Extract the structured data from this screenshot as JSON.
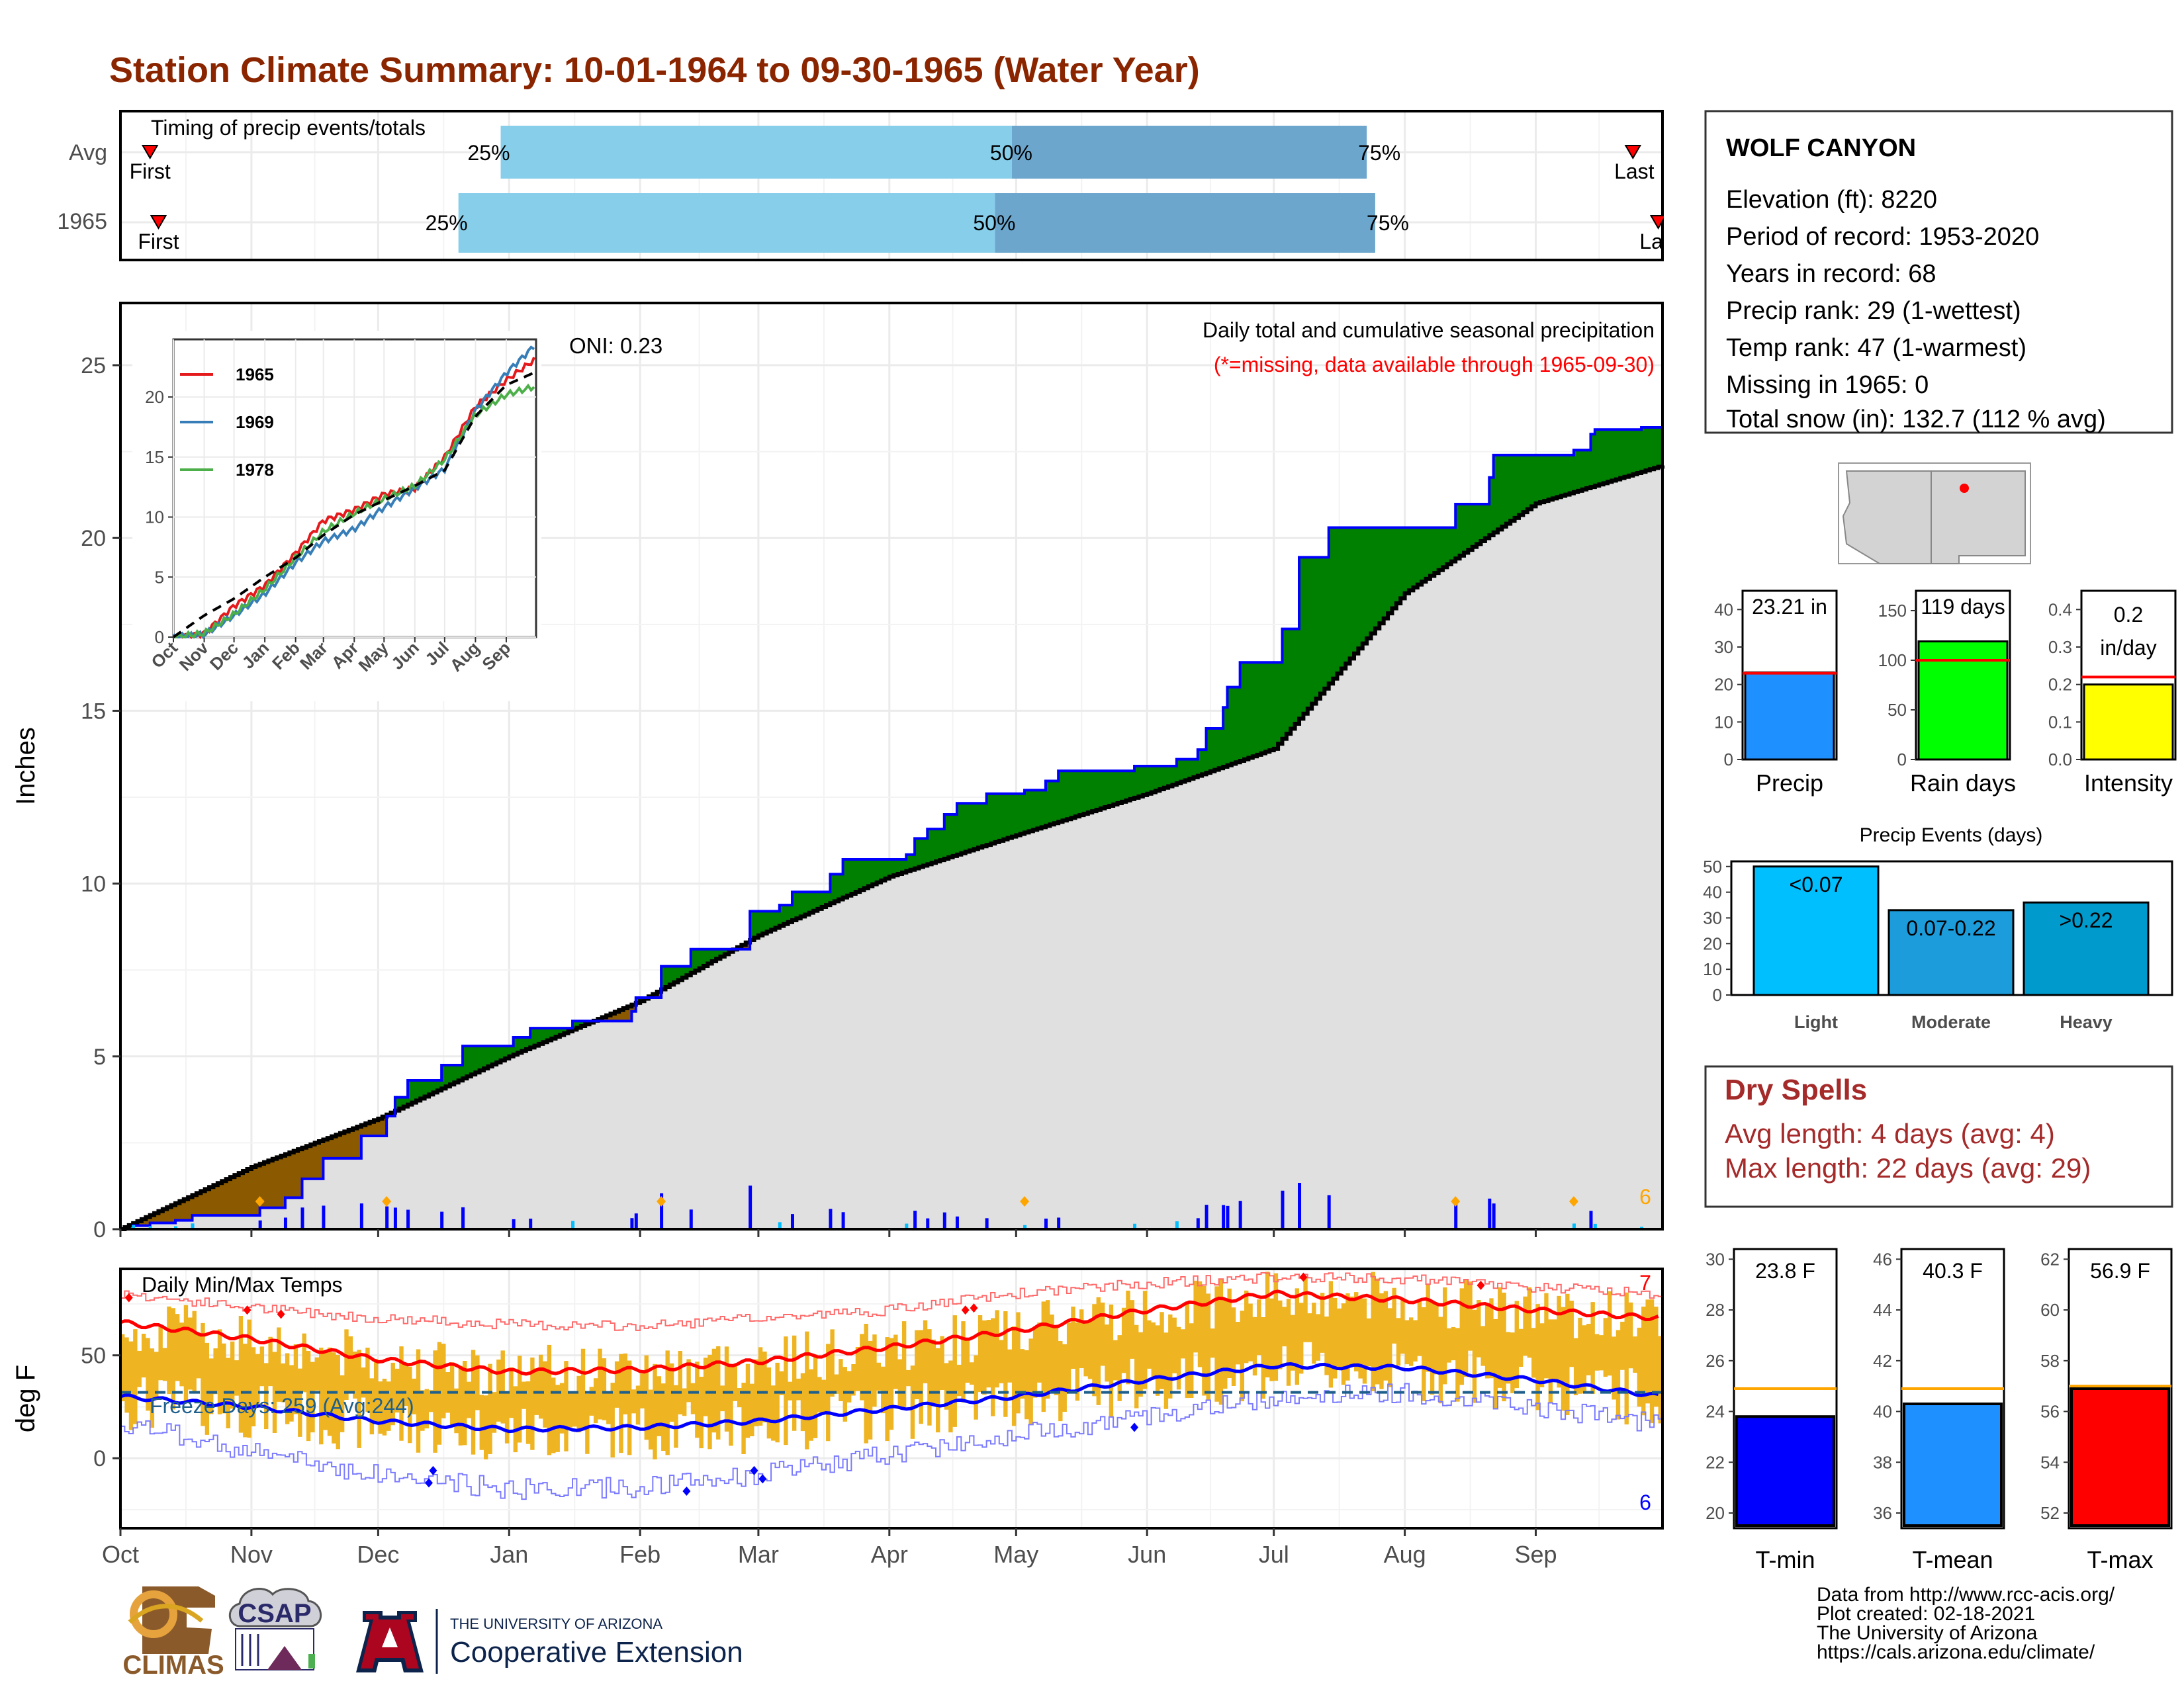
{
  "title": "Station Climate Summary: 10-01-1964 to 09-30-1965 (Water Year)",
  "colors": {
    "title": "#8B2500",
    "q_light": "#87CEEB",
    "q_dark": "#6CA6CD",
    "above_avg": "#008000",
    "below_avg": "#8B5A00",
    "cum_fill": "#E0E0E0",
    "obs_line": "#0000FF",
    "temp_bar": "#EEB422",
    "tmax_line": "#FF0000",
    "tmin_line": "#0000FF"
  },
  "timing": {
    "label": "Timing of precip events/totals",
    "rows": [
      {
        "name": "Avg",
        "first_label": "First",
        "last_label": "Last",
        "p25": "25%",
        "p50": "50%",
        "p75": "75%"
      },
      {
        "name": "1965",
        "first_label": "First",
        "last_label": "Last",
        "p25": "25%",
        "p50": "50%",
        "p75": "75%"
      }
    ]
  },
  "precip_panel": {
    "y_axis_title": "Inches",
    "title": "Daily total and cumulative seasonal precipitation",
    "missing_note": "(*=missing, data available through 1965-09-30)",
    "oni": "ONI: 0.23",
    "corner_count": "6",
    "y_ticks": [
      "0",
      "5",
      "10",
      "15",
      "20",
      "25"
    ]
  },
  "inset": {
    "y_ticks": [
      "0",
      "5",
      "10",
      "15",
      "20"
    ],
    "x_ticks": [
      "Oct",
      "Nov",
      "Dec",
      "Jan",
      "Feb",
      "Mar",
      "Apr",
      "May",
      "Jun",
      "Jul",
      "Aug",
      "Sep"
    ],
    "legend": [
      {
        "year": "1965",
        "color": "#E41A1C"
      },
      {
        "year": "1969",
        "color": "#377EB8"
      },
      {
        "year": "1978",
        "color": "#4DAF4A"
      }
    ]
  },
  "temp_panel": {
    "y_axis_title": "deg F",
    "title": "Daily Min/Max Temps",
    "freeze": "Freeze Days: 259 (Avg:244)",
    "max_count": "7",
    "min_count": "6",
    "y_ticks": [
      "0",
      "50"
    ]
  },
  "months": [
    "Oct",
    "Nov",
    "Dec",
    "Jan",
    "Feb",
    "Mar",
    "Apr",
    "May",
    "Jun",
    "Jul",
    "Aug",
    "Sep"
  ],
  "station": {
    "name": "WOLF CANYON",
    "lines": [
      "Elevation (ft): 8220",
      "Period of record: 1953-2020",
      "Years in record: 68",
      "Precip rank: 29 (1-wettest)",
      "Temp rank: 47 (1-warmest)",
      "Missing in 1965: 0",
      "Total snow (in): 132.7 (112 % avg)"
    ]
  },
  "summary_bars": [
    {
      "label": "Precip",
      "value_text": "23.21 in",
      "ticks": [
        "0",
        "10",
        "20",
        "30",
        "40"
      ],
      "color": "#1E90FF"
    },
    {
      "label": "Rain days",
      "value_text": "119 days",
      "ticks": [
        "0",
        "50",
        "100",
        "150"
      ],
      "color": "#00FF00"
    },
    {
      "label": "Intensity",
      "value_text": "0.2",
      "value_text2": "in/day",
      "ticks": [
        "0.0",
        "0.1",
        "0.2",
        "0.3",
        "0.4"
      ],
      "color": "#FFFF00"
    }
  ],
  "events": {
    "title": "Precip Events (days)",
    "ticks": [
      "0",
      "10",
      "20",
      "30",
      "40",
      "50"
    ],
    "bars": [
      {
        "cat": "Light",
        "label": "<0.07",
        "color": "#00BFFF"
      },
      {
        "cat": "Moderate",
        "label": "0.07-0.22",
        "color": "#1C9CDB"
      },
      {
        "cat": "Heavy",
        "label": ">0.22",
        "color": "#009ACD"
      }
    ]
  },
  "dry_spells": {
    "title": "Dry Spells",
    "avg": "Avg length: 4 days (avg: 4)",
    "max": "Max length: 22 days (avg: 29)"
  },
  "temp_bars": [
    {
      "label": "T-min",
      "value_text": "23.8 F",
      "ticks": [
        "20",
        "22",
        "24",
        "26",
        "28",
        "30"
      ],
      "color": "#0000FF"
    },
    {
      "label": "T-mean",
      "value_text": "40.3 F",
      "ticks": [
        "36",
        "38",
        "40",
        "42",
        "44",
        "46"
      ],
      "color": "#1E90FF"
    },
    {
      "label": "T-max",
      "value_text": "56.9 F",
      "ticks": [
        "52",
        "54",
        "56",
        "58",
        "60",
        "62"
      ],
      "color": "#FF0000"
    }
  ],
  "footer": {
    "lines": [
      "Data from http://www.rcc-acis.org/",
      "Plot created: 02-18-2021",
      "The University of Arizona",
      "https://cals.arizona.edu/climate/"
    ],
    "logo_climas": "CLIMAS",
    "logo_csap": "CSAP",
    "ua_line1": "THE UNIVERSITY OF ARIZONA",
    "ua_line2": "Cooperative Extension"
  },
  "chart_data": [
    {
      "type": "bar",
      "title": "Timing of precip events/totals",
      "categories": [
        "Avg",
        "1965"
      ],
      "series": [
        {
          "name": "First",
          "values": [
            "Oct 08",
            "Oct 10"
          ]
        },
        {
          "name": "25%",
          "values": [
            "Dec 30",
            "Dec 20"
          ]
        },
        {
          "name": "50%",
          "values": [
            "Apr 30",
            "Apr 26"
          ]
        },
        {
          "name": "75%",
          "values": [
            "Jul 23",
            "Jul 25"
          ]
        },
        {
          "name": "Last",
          "values": [
            "Sep 24",
            "Sep 30"
          ]
        }
      ]
    },
    {
      "type": "area",
      "title": "Daily total and cumulative seasonal precipitation",
      "ylabel": "Inches",
      "ylim": [
        0,
        25
      ],
      "x": [
        "Oct",
        "Nov",
        "Dec",
        "Jan",
        "Feb",
        "Mar",
        "Apr",
        "May",
        "Jun",
        "Jul",
        "Aug",
        "Sep",
        "Oct"
      ],
      "series": [
        {
          "name": "1965",
          "values": [
            0.0,
            0.4,
            2.7,
            5.3,
            6.7,
            9.2,
            10.7,
            12.6,
            13.4,
            16.4,
            20.3,
            22.4,
            23.2
          ]
        },
        {
          "name": "Avg",
          "values": [
            0.0,
            1.8,
            3.2,
            5.0,
            6.6,
            8.5,
            10.2,
            11.4,
            12.6,
            13.9,
            18.4,
            21.0,
            22.1
          ]
        }
      ]
    },
    {
      "type": "line",
      "ylim": [
        0,
        25
      ],
      "x": [
        "Oct",
        "Nov",
        "Dec",
        "Jan",
        "Feb",
        "Mar",
        "Apr",
        "May",
        "Jun",
        "Jul",
        "Aug",
        "Sep",
        "Oct"
      ],
      "series": [
        {
          "name": "1965",
          "values": [
            0.0,
            0.3,
            2.6,
            4.3,
            7.0,
            9.7,
            10.6,
            11.9,
            12.4,
            15.0,
            19.2,
            21.4,
            23.2
          ]
        },
        {
          "name": "1969",
          "values": [
            0.0,
            0.2,
            1.8,
            3.6,
            6.2,
            8.0,
            9.0,
            10.8,
            12.4,
            14.0,
            18.9,
            22.0,
            24.4
          ]
        },
        {
          "name": "1978",
          "values": [
            0.0,
            0.3,
            1.9,
            4.0,
            6.6,
            8.8,
            10.3,
            11.5,
            12.6,
            14.8,
            18.5,
            20.2,
            20.9
          ]
        },
        {
          "name": "Avg",
          "values": [
            0.0,
            1.8,
            3.2,
            5.0,
            6.6,
            8.5,
            10.2,
            11.4,
            12.6,
            13.9,
            18.4,
            21.0,
            22.1
          ]
        }
      ]
    },
    {
      "type": "line",
      "title": "Daily Min/Max Temps",
      "ylabel": "deg F",
      "x": [
        "Oct",
        "Nov",
        "Dec",
        "Jan",
        "Feb",
        "Mar",
        "Apr",
        "May",
        "Jun",
        "Jul",
        "Aug",
        "Sep",
        "Oct"
      ],
      "series": [
        {
          "name": "Avg max",
          "values": [
            66,
            58,
            48,
            42,
            43,
            47,
            54,
            62,
            72,
            80,
            77,
            72,
            68
          ]
        },
        {
          "name": "Avg min",
          "values": [
            30,
            25,
            18,
            14,
            15,
            18,
            24,
            30,
            38,
            45,
            44,
            38,
            30
          ]
        },
        {
          "name": "Record max",
          "values": [
            80,
            73,
            68,
            65,
            64,
            68,
            72,
            80,
            85,
            88,
            87,
            83,
            80
          ]
        },
        {
          "name": "Record min",
          "values": [
            17,
            3,
            -8,
            -15,
            -14,
            -8,
            2,
            12,
            20,
            30,
            32,
            25,
            16
          ]
        }
      ]
    },
    {
      "type": "bar",
      "categories": [
        "Precip",
        "Rain days",
        "Intensity"
      ],
      "series": [
        {
          "name": "1965",
          "values": [
            23.21,
            119,
            0.2
          ]
        },
        {
          "name": "Avg",
          "values": [
            23.0,
            100,
            0.22
          ]
        }
      ]
    },
    {
      "type": "bar",
      "title": "Precip Events (days)",
      "categories": [
        "Light",
        "Moderate",
        "Heavy"
      ],
      "values": [
        50,
        33,
        36
      ],
      "ylim": [
        0,
        52
      ]
    },
    {
      "type": "bar",
      "categories": [
        "T-min",
        "T-mean",
        "T-max"
      ],
      "series": [
        {
          "name": "1965",
          "values": [
            23.8,
            40.3,
            56.9
          ]
        },
        {
          "name": "Avg",
          "values": [
            24.9,
            40.9,
            57.0
          ]
        }
      ]
    }
  ]
}
